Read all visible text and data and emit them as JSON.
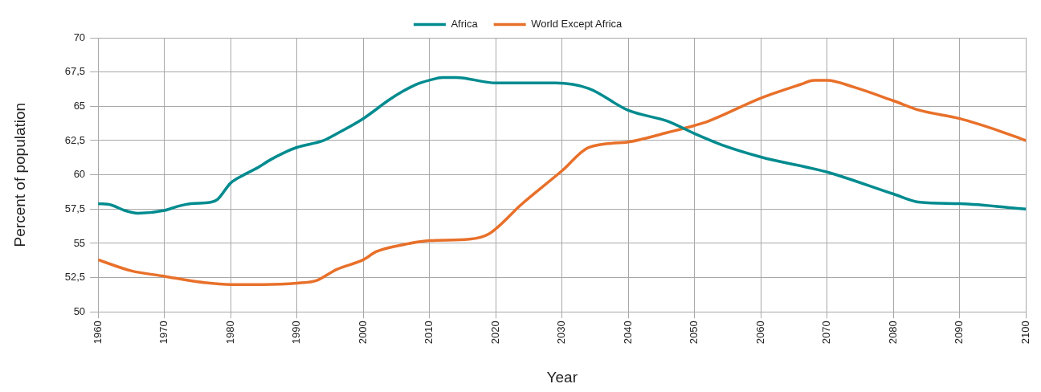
{
  "chart_data": {
    "type": "line",
    "xlabel": "Year",
    "ylabel": "Percent of population",
    "xlim": [
      1960,
      2100
    ],
    "xticks": [
      1960,
      1970,
      1980,
      1990,
      2000,
      2010,
      2020,
      2030,
      2040,
      2050,
      2060,
      2070,
      2080,
      2090,
      2100
    ],
    "ylim": [
      50,
      70
    ],
    "yticks": [
      50,
      {
        "value": 52.5,
        "label": "52,5"
      },
      55,
      {
        "value": 57.5,
        "label": "57,5"
      },
      60,
      {
        "value": 62.5,
        "label": "62,5"
      },
      65,
      {
        "value": 67.5,
        "label": "67,5"
      },
      70
    ],
    "grid": true,
    "legend": "top",
    "marker": "none",
    "line_style": "solid",
    "series": [
      {
        "name": "Africa",
        "color": "#008b8f",
        "x": [
          1960,
          1962,
          1964,
          1966,
          1970,
          1972,
          1974,
          1977,
          1978,
          1980,
          1982,
          1984,
          1986,
          1988,
          1990,
          1994,
          1996,
          2000,
          2004,
          2006,
          2008,
          2010,
          2012,
          2014,
          2020,
          2029,
          2034,
          2040,
          2046,
          2050,
          2054,
          2060,
          2070,
          2080,
          2084,
          2090,
          2100
        ],
        "values": [
          57.9,
          57.8,
          57.4,
          57.2,
          57.4,
          57.7,
          57.9,
          58.0,
          58.2,
          59.4,
          60.0,
          60.5,
          61.1,
          61.6,
          62.0,
          62.5,
          63.0,
          64.1,
          65.5,
          66.1,
          66.6,
          66.9,
          67.1,
          67.1,
          66.7,
          66.7,
          66.3,
          64.7,
          63.9,
          63.0,
          62.2,
          61.3,
          60.2,
          58.6,
          58.0,
          57.9,
          57.5
        ]
      },
      {
        "name": "World Except Africa",
        "color": "#e8702a",
        "x": [
          1960,
          1965,
          1970,
          1975,
          1980,
          1985,
          1990,
          1993,
          1996,
          2000,
          2002,
          2006,
          2010,
          2016,
          2019,
          2024,
          2030,
          2034,
          2040,
          2046,
          2050,
          2052,
          2060,
          2066,
          2068,
          2070,
          2074,
          2080,
          2084,
          2090,
          2096,
          2100
        ],
        "values": [
          53.8,
          53.0,
          52.6,
          52.2,
          52.0,
          52.0,
          52.1,
          52.3,
          53.1,
          53.8,
          54.4,
          54.9,
          55.2,
          55.3,
          55.7,
          57.9,
          60.3,
          62.0,
          62.4,
          63.1,
          63.6,
          63.9,
          65.6,
          66.6,
          66.9,
          66.9,
          66.4,
          65.4,
          64.7,
          64.1,
          63.2,
          62.5
        ]
      }
    ]
  }
}
